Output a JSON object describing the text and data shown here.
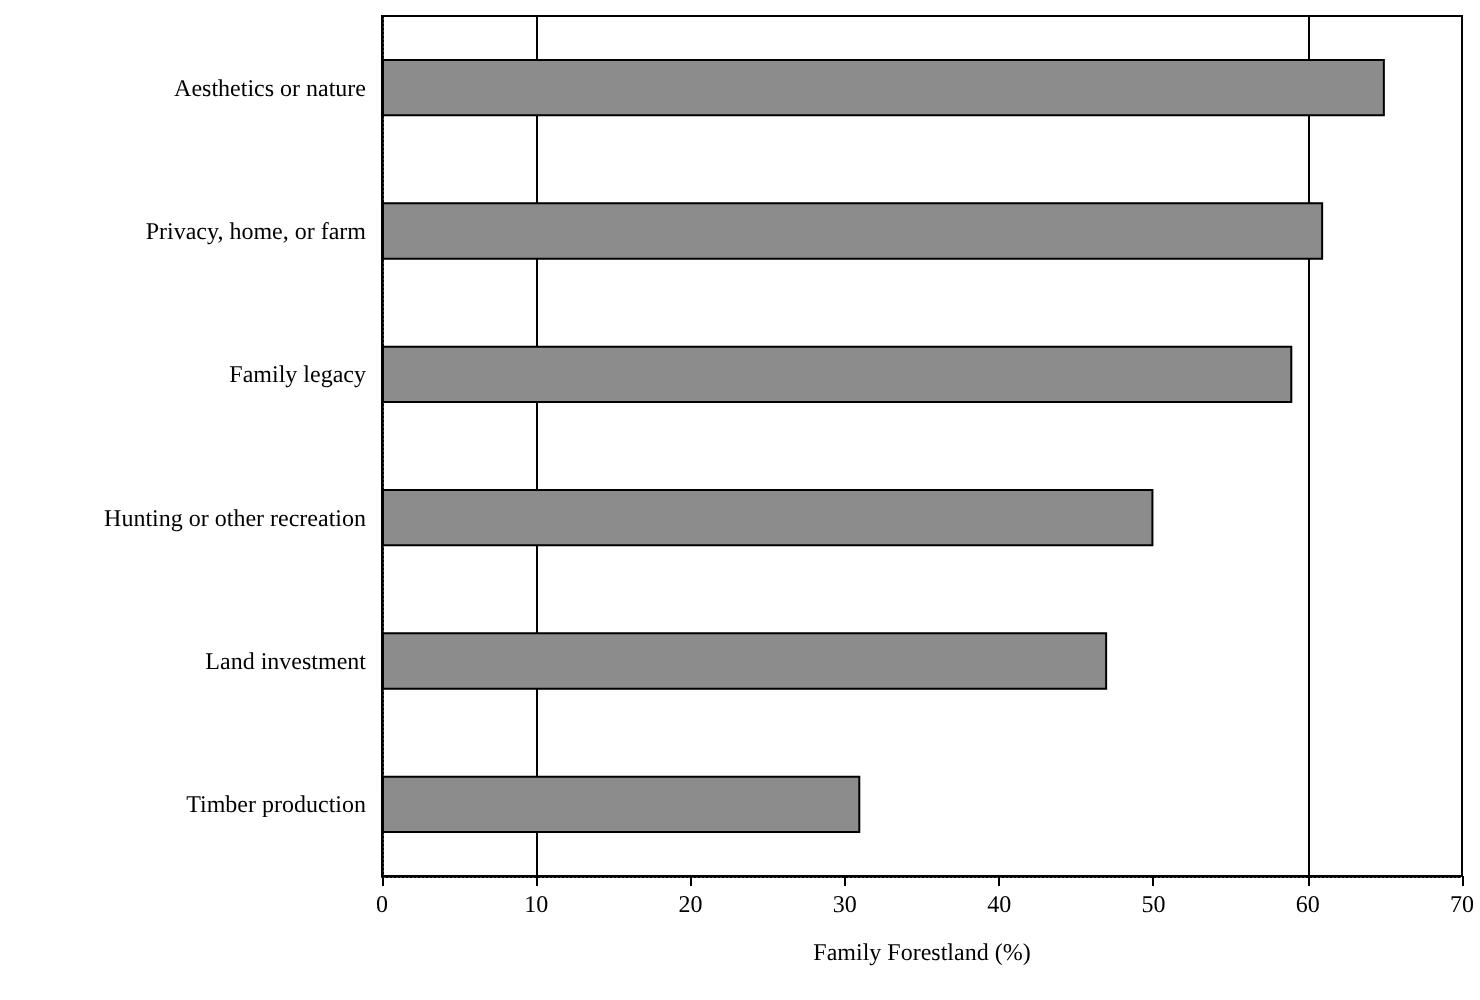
{
  "chart_data": {
    "type": "bar",
    "orientation": "horizontal",
    "xlabel": "Family Forestland (%)",
    "categories": [
      "Aesthetics or nature",
      "Privacy, home, or farm",
      "Family legacy",
      "Hunting or other recreation",
      "Land investment",
      "Timber production"
    ],
    "values": [
      65,
      61,
      59,
      50,
      47,
      31
    ],
    "color": "#8c8c8c",
    "xlim": [
      0,
      70
    ],
    "xticks": [
      0,
      10,
      20,
      30,
      40,
      50,
      60,
      70
    ],
    "grid": false,
    "ref_lines": [
      {
        "axis": "x",
        "value": 10,
        "color": "#000000"
      },
      {
        "axis": "x",
        "value": 60,
        "color": "#000000"
      }
    ]
  }
}
